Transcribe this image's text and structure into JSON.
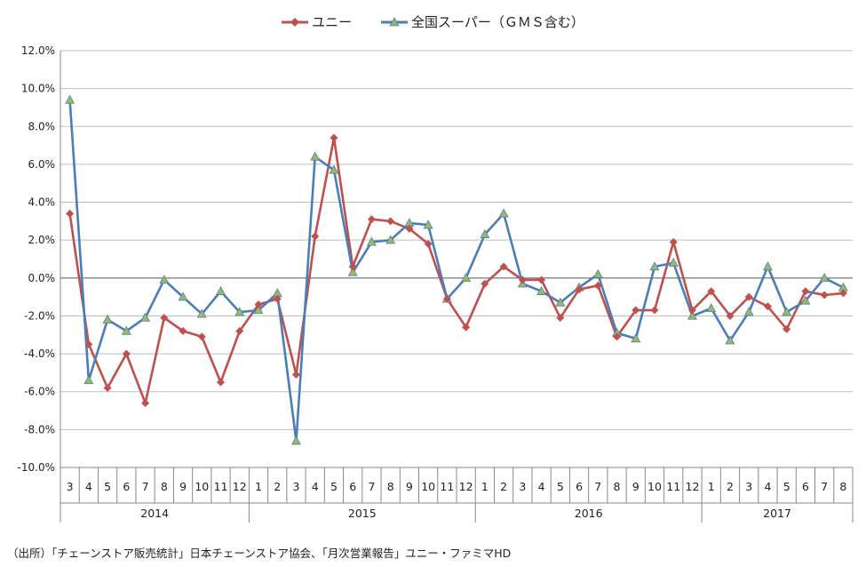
{
  "chart_data": {
    "type": "line",
    "ylim": [
      -10,
      12
    ],
    "ytick_step": 2,
    "ytick_labels": [
      "12.0%",
      "10.0%",
      "8.0%",
      "6.0%",
      "4.0%",
      "2.0%",
      "0.0%",
      "-2.0%",
      "-4.0%",
      "-6.0%",
      "-8.0%",
      "-10.0%"
    ],
    "months": [
      "3",
      "4",
      "5",
      "6",
      "7",
      "8",
      "9",
      "10",
      "11",
      "12",
      "1",
      "2",
      "3",
      "4",
      "5",
      "6",
      "7",
      "8",
      "9",
      "10",
      "11",
      "12",
      "1",
      "2",
      "3",
      "4",
      "5",
      "6",
      "7",
      "8",
      "9",
      "10",
      "11",
      "12",
      "1",
      "2",
      "3",
      "4",
      "5",
      "6",
      "7",
      "8"
    ],
    "years": [
      {
        "label": "2014",
        "count": 10
      },
      {
        "label": "2015",
        "count": 12
      },
      {
        "label": "2016",
        "count": 12
      },
      {
        "label": "2017",
        "count": 8
      }
    ],
    "grid": "y-major",
    "legend_position": "top",
    "series": [
      {
        "name": "ユニー",
        "color": "#c0504d",
        "marker": "diamond",
        "values": [
          3.4,
          -3.5,
          -5.8,
          -4.0,
          -6.6,
          -2.1,
          -2.8,
          -3.1,
          -5.5,
          -2.8,
          -1.4,
          -1.1,
          -5.1,
          2.2,
          7.4,
          0.6,
          3.1,
          3.0,
          2.6,
          1.8,
          -1.1,
          -2.6,
          -0.3,
          0.6,
          -0.1,
          -0.1,
          -2.1,
          -0.6,
          -0.4,
          -3.1,
          -1.7,
          -1.7,
          1.9,
          -1.7,
          -0.7,
          -2.0,
          -1.0,
          -1.5,
          -2.7,
          -0.7,
          -0.9,
          -0.8
        ]
      },
      {
        "name": "全国スーパー（ＧＭＳ含む）",
        "color": "#4a7ebb",
        "marker": "triangle",
        "marker_color": "#9bbb59",
        "values": [
          9.4,
          -5.4,
          -2.2,
          -2.8,
          -2.1,
          -0.1,
          -1.0,
          -1.9,
          -0.7,
          -1.8,
          -1.7,
          -0.8,
          -8.6,
          6.4,
          5.7,
          0.3,
          1.9,
          2.0,
          2.9,
          2.8,
          -1.1,
          0.0,
          2.3,
          3.4,
          -0.3,
          -0.7,
          -1.3,
          -0.5,
          0.2,
          -2.9,
          -3.2,
          0.6,
          0.8,
          -2.0,
          -1.6,
          -3.3,
          -1.8,
          0.6,
          -1.8,
          -1.2,
          0.0,
          -0.5
        ]
      }
    ]
  },
  "source_note": "（出所）「チェーンストア販売統計」日本チェーンストア協会、「月次営業報告」ユニー・ファミマHD"
}
